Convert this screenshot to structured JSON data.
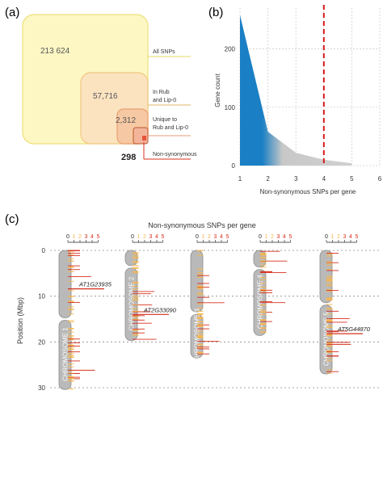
{
  "panels": {
    "a": "(a)",
    "b": "(b)",
    "c": "(c)"
  },
  "chart_data": [
    {
      "type": "venn",
      "panel": "(a)",
      "sets": [
        {
          "label": "All SNPs",
          "value": "213 624",
          "color": "#fdf7c4"
        },
        {
          "label": "In Rub and Lip-0",
          "label_lines": [
            "In Rub",
            "and Lip-0"
          ],
          "value": "57,716",
          "color": "#fbe3c0"
        },
        {
          "label": "Unique to Rub and Lip-0",
          "label_lines": [
            "Unique to",
            "Rub and Lip-0"
          ],
          "value": "2,312",
          "color": "#f6c9a4"
        },
        {
          "label": "Non-synonymous",
          "label_lines": [
            "Non-synonymous"
          ],
          "value": "298",
          "color": "#e8533a"
        }
      ]
    },
    {
      "type": "area",
      "panel": "(b)",
      "xlabel": "Non-synonymous SNPs per gene",
      "ylabel": "Gene count",
      "xlim": [
        1,
        6
      ],
      "ylim": [
        0,
        270
      ],
      "xticks": [
        1,
        2,
        3,
        4,
        5,
        6
      ],
      "yticks": [
        0,
        100,
        200
      ],
      "x": [
        1,
        2,
        3,
        4,
        5
      ],
      "values": [
        258,
        58,
        22,
        10,
        4
      ],
      "threshold": 4,
      "colors": {
        "fill": "#1a7fc4",
        "fade": "#c8c8c8",
        "threshold": "#d7191c"
      },
      "grid": true
    },
    {
      "type": "chromosome_map",
      "panel": "(c)",
      "title": "Non-synonymous SNPs per gene",
      "ylabel": "Position (Mbp)",
      "ylim": [
        0,
        30
      ],
      "yticks": [
        0,
        10,
        20,
        30
      ],
      "scale_ticks": [
        "0",
        "1",
        "2",
        "3",
        "4",
        "5"
      ],
      "chromosomes": [
        {
          "name": "CHROMOSOME 1",
          "length": 30.4,
          "centromere": 15.0,
          "gene_label": "AT1G23935",
          "gene_pos": 8.4
        },
        {
          "name": "CHROMOSOME 2",
          "length": 19.7,
          "centromere": 3.6,
          "gene_label": "AT2G33090",
          "gene_pos": 14.0
        },
        {
          "name": "CHROMOSOME 3",
          "length": 23.5,
          "centromere": 13.7,
          "gene_label": "",
          "gene_pos": null
        },
        {
          "name": "CHROMOSOME 4",
          "length": 18.6,
          "centromere": 3.9,
          "gene_label": "",
          "gene_pos": null
        },
        {
          "name": "CHROMOSOME 5",
          "length": 27.0,
          "centromere": 11.7,
          "gene_label": "AT5G44870",
          "gene_pos": 18.2
        }
      ],
      "colors": {
        "low": "#f7b64c",
        "high": "#d7301f",
        "chromosome": "#b9b9b9"
      }
    }
  ]
}
